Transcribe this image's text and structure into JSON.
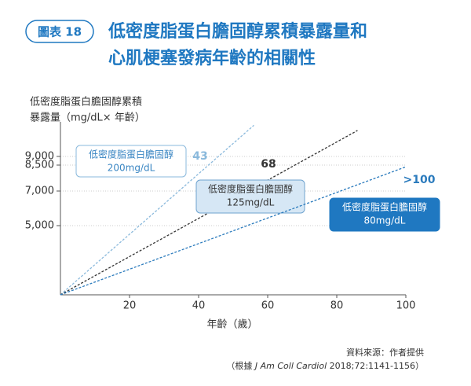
{
  "chart_data": {
    "type": "line",
    "badge": "圖表 18",
    "title": [
      "低密度脂蛋白膽固醇累積暴露量和",
      "心肌梗塞發病年齡的相關性"
    ],
    "y_label": [
      "低密度脂蛋白膽固醇累積",
      "暴露量（mg/dL× 年齡）"
    ],
    "x_label": "年齡（歲）",
    "xlim": [
      0,
      100
    ],
    "xticks": [
      20,
      40,
      60,
      80,
      100
    ],
    "ylim": [
      1000,
      11000
    ],
    "yticks": [
      {
        "value": 5000,
        "label": "5,000"
      },
      {
        "value": 7000,
        "label": "7,000"
      },
      {
        "value": 8500,
        "label": "8,500"
      },
      {
        "value": 9000,
        "label": "9,000"
      }
    ],
    "grid": true,
    "series": [
      {
        "name": [
          "低密度脂蛋白膽固醇",
          "200mg/dL"
        ],
        "color": "#8ab9dc",
        "x": [
          0,
          56
        ],
        "values": [
          1000,
          10800
        ],
        "annotation": "43"
      },
      {
        "name": [
          "低密度脂蛋白膽固醇",
          "125mg/dL"
        ],
        "color": "#333333",
        "x": [
          0,
          86
        ],
        "values": [
          1000,
          10500
        ],
        "annotation": "68"
      },
      {
        "name": [
          "低密度脂蛋白膽固醇",
          "80mg/dL"
        ],
        "color": "#2b7bbd",
        "x": [
          0,
          100
        ],
        "values": [
          1000,
          8400
        ],
        "annotation": ">100"
      }
    ],
    "source": [
      "資料來源：作者提供",
      "（根據 ",
      "J Am Coll Cardiol",
      " 2018;72:1141-1156）"
    ]
  }
}
